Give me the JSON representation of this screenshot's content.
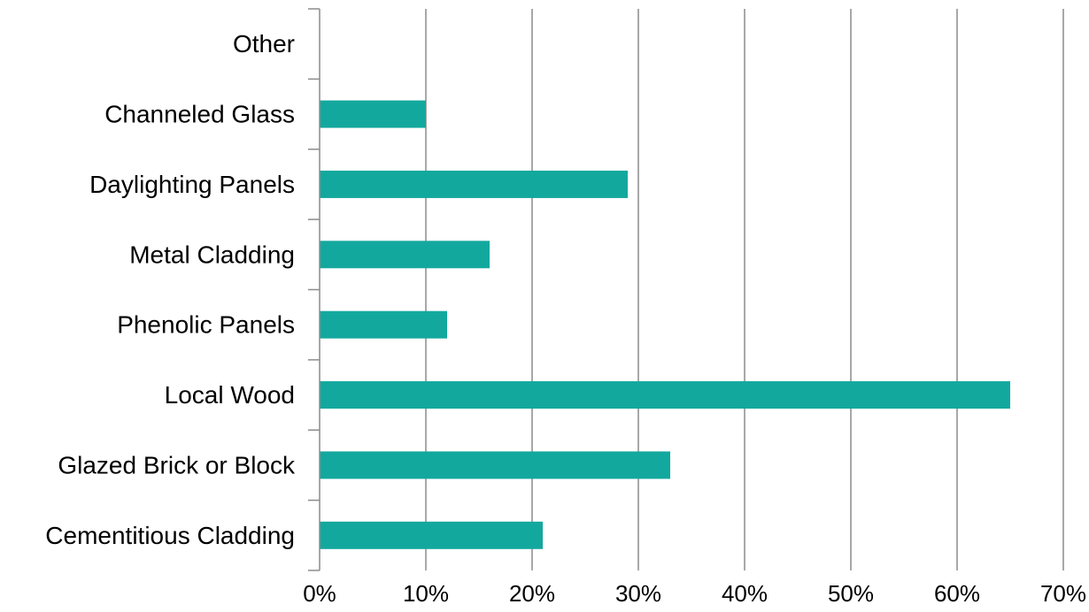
{
  "chart_data": {
    "type": "bar",
    "orientation": "horizontal",
    "title": "",
    "xlabel": "",
    "ylabel": "",
    "categories": [
      "Other",
      "Channeled Glass",
      "Daylighting Panels",
      "Metal Cladding",
      "Phenolic Panels",
      "Local Wood",
      "Glazed Brick or Block",
      "Cementitious Cladding"
    ],
    "values": [
      0,
      10,
      29,
      16,
      12,
      65,
      33,
      21
    ],
    "xlim": [
      0,
      70
    ],
    "x_ticks": [
      "0%",
      "10%",
      "20%",
      "30%",
      "40%",
      "50%",
      "60%",
      "70%"
    ],
    "grid": "vertical",
    "legend": "none",
    "bar_color": "#13a89e",
    "grid_color": "#8c8c8c"
  }
}
